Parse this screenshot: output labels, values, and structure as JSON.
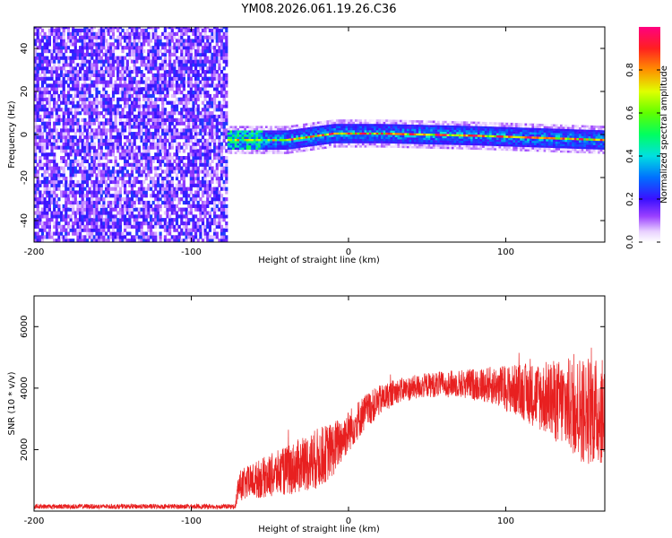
{
  "title": "YM08.2026.061.19.26.C36",
  "colors": {
    "snr_line": "#e82020",
    "frame": "#000000"
  },
  "chart_data": [
    {
      "type": "heatmap",
      "title": "YM08.2026.061.19.26.C36",
      "xlabel": "Height of straight line (km)",
      "ylabel": "Frequency (Hz)",
      "xlim": [
        -200,
        163
      ],
      "ylim": [
        -50,
        50
      ],
      "xticks": [
        -200,
        -100,
        0,
        100
      ],
      "xtick_labels": [
        "-200",
        "-100",
        "0",
        "100"
      ],
      "yticks": [
        -40,
        -20,
        0,
        20,
        40
      ],
      "ytick_labels": [
        "-40",
        "-20",
        "0",
        "20",
        "40"
      ],
      "colorbar": {
        "label": "Normalized spectral amplitude",
        "range": [
          0.0,
          1.0
        ],
        "ticks": [
          0.0,
          0.2,
          0.4,
          0.6,
          0.8
        ],
        "tick_labels": [
          "0.0",
          "0.2",
          "0.4",
          "0.6",
          "0.8"
        ]
      },
      "regions": [
        {
          "x_range": [
            -200,
            -77
          ],
          "description_value": "broadband noise 0.1-0.3"
        },
        {
          "x_range": [
            -77,
            163
          ],
          "band_center_hz": [
            [
              -77,
              -3
            ],
            [
              -40,
              -3
            ],
            [
              -10,
              0
            ],
            [
              20,
              0
            ],
            [
              80,
              -1
            ],
            [
              163,
              -3
            ]
          ],
          "band_halfwidth_hz": 4,
          "peak_amplitude": 1.0
        }
      ]
    },
    {
      "type": "line",
      "xlabel": "Height of straight line (km)",
      "ylabel": "SNR (10 * v/v)",
      "xlim": [
        -200,
        163
      ],
      "ylim": [
        0,
        7000
      ],
      "xticks": [
        -200,
        -100,
        0,
        100
      ],
      "xtick_labels": [
        "-200",
        "-100",
        "0",
        "100"
      ],
      "yticks": [
        2000,
        4000,
        6000
      ],
      "ytick_labels": [
        "2000",
        "4000",
        "6000"
      ],
      "series": [
        {
          "name": "SNR",
          "envelope_x": [
            -200,
            -72,
            -70,
            -60,
            -40,
            -20,
            -10,
            0,
            10,
            20,
            30,
            50,
            70,
            90,
            110,
            130,
            150,
            163
          ],
          "envelope_mean": [
            150,
            150,
            800,
            1000,
            1300,
            1700,
            2000,
            2600,
            3200,
            3600,
            3900,
            4100,
            4150,
            4100,
            3900,
            3600,
            3300,
            3200
          ],
          "envelope_spread": [
            80,
            80,
            500,
            600,
            800,
            1000,
            900,
            700,
            600,
            500,
            400,
            400,
            450,
            600,
            900,
            1300,
            1800,
            1700
          ]
        }
      ]
    }
  ]
}
